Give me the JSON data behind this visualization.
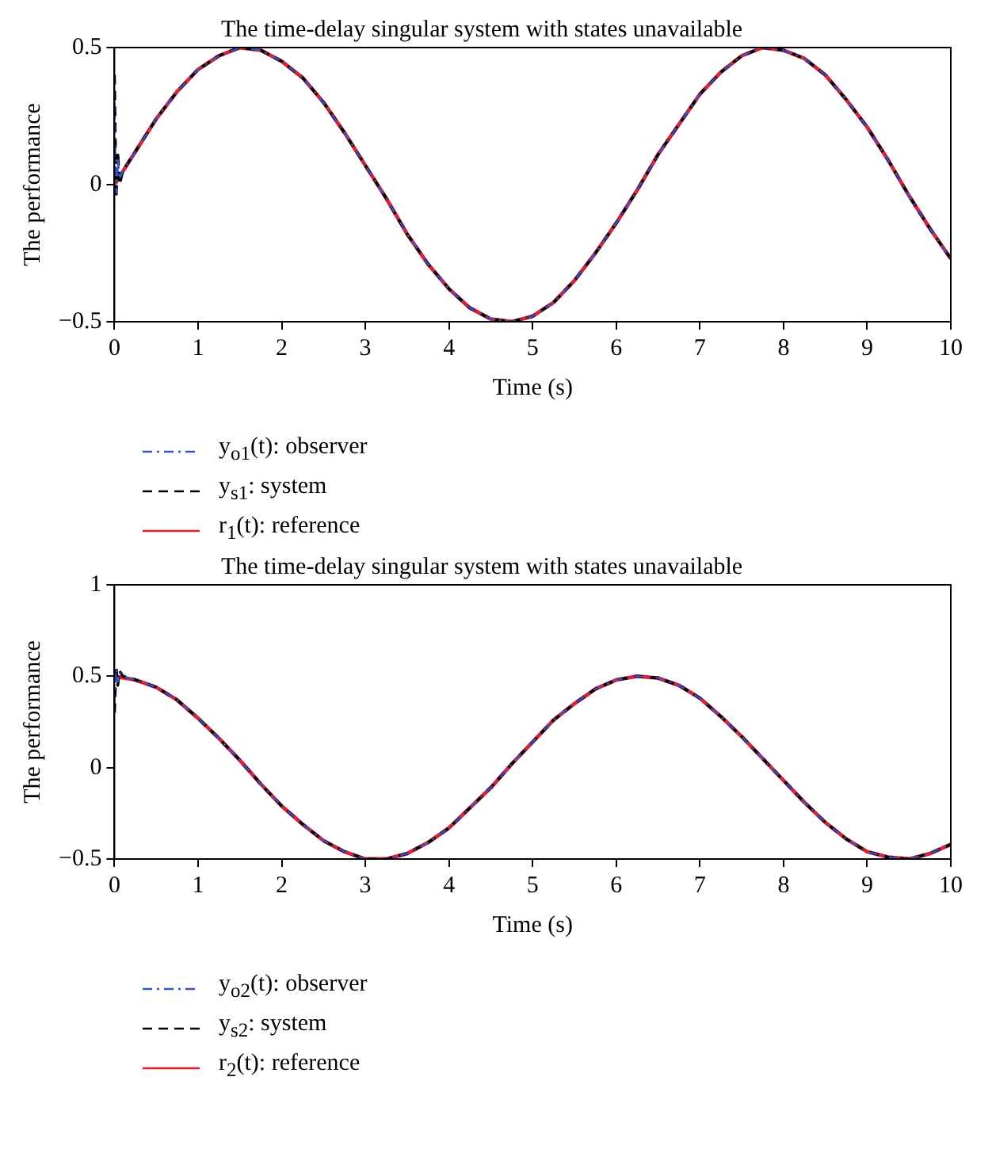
{
  "chart_data": [
    {
      "type": "line",
      "title": "The time-delay singular system with states unavailable",
      "xlabel": "Time (s)",
      "ylabel": "The performance",
      "xlim": [
        0,
        10
      ],
      "xticks": [
        0,
        1,
        2,
        3,
        4,
        5,
        6,
        7,
        8,
        9,
        10
      ],
      "ylim": [
        -0.5,
        0.5
      ],
      "yticks": [
        -0.5,
        0,
        0.5
      ],
      "grid": false,
      "legend": "bottom",
      "marker": "none",
      "x": [
        0,
        0.25,
        0.5,
        0.75,
        1,
        1.25,
        1.5,
        1.75,
        2,
        2.25,
        2.5,
        2.75,
        3,
        3.25,
        3.5,
        3.75,
        4,
        4.25,
        4.5,
        4.75,
        5,
        5.25,
        5.5,
        5.75,
        6,
        6.25,
        6.5,
        6.75,
        7,
        7.25,
        7.5,
        7.75,
        8,
        8.25,
        8.5,
        8.75,
        9,
        9.25,
        9.5,
        9.75,
        10
      ],
      "series": [
        {
          "name": "y$_{o1}$(t): observer",
          "color": "#3355cc",
          "line_style": "dashdot",
          "x": [
            0,
            0.02,
            0.04,
            0.06,
            0.1,
            0.25,
            0.5,
            0.75,
            1,
            1.25,
            1.5,
            1.75,
            2,
            2.25,
            2.5,
            2.75,
            3,
            3.25,
            3.5,
            3.75,
            4,
            4.25,
            4.5,
            4.75,
            5,
            5.25,
            5.5,
            5.75,
            6,
            6.25,
            6.5,
            6.75,
            7,
            7.25,
            7.5,
            7.75,
            8,
            8.25,
            8.5,
            8.75,
            9,
            9.25,
            9.5,
            9.75,
            10
          ],
          "values": [
            0.3,
            -0.03,
            0.1,
            0.02,
            0.05,
            0.12,
            0.24,
            0.34,
            0.42,
            0.47,
            0.5,
            0.49,
            0.45,
            0.39,
            0.3,
            0.19,
            0.07,
            -0.05,
            -0.18,
            -0.29,
            -0.38,
            -0.45,
            -0.49,
            -0.5,
            -0.48,
            -0.43,
            -0.35,
            -0.25,
            -0.14,
            -0.02,
            0.11,
            0.22,
            0.33,
            0.41,
            0.47,
            0.5,
            0.49,
            0.46,
            0.4,
            0.31,
            0.21,
            0.09,
            -0.04,
            -0.16,
            -0.27
          ]
        },
        {
          "name": "y$_{s1}$: system",
          "color": "#000000",
          "line_style": "dashed",
          "x": [
            0,
            0.02,
            0.04,
            0.06,
            0.1,
            0.25,
            0.5,
            0.75,
            1,
            1.25,
            1.5,
            1.75,
            2,
            2.25,
            2.5,
            2.75,
            3,
            3.25,
            3.5,
            3.75,
            4,
            4.25,
            4.5,
            4.75,
            5,
            5.25,
            5.5,
            5.75,
            6,
            6.25,
            6.5,
            6.75,
            7,
            7.25,
            7.5,
            7.75,
            8,
            8.25,
            8.5,
            8.75,
            9,
            9.25,
            9.5,
            9.75,
            10
          ],
          "values": [
            0.4,
            -0.05,
            0.12,
            0.0,
            0.05,
            0.12,
            0.24,
            0.34,
            0.42,
            0.47,
            0.5,
            0.49,
            0.45,
            0.39,
            0.3,
            0.19,
            0.07,
            -0.05,
            -0.18,
            -0.29,
            -0.38,
            -0.45,
            -0.49,
            -0.5,
            -0.48,
            -0.43,
            -0.35,
            -0.25,
            -0.14,
            -0.02,
            0.11,
            0.22,
            0.33,
            0.41,
            0.47,
            0.5,
            0.49,
            0.46,
            0.4,
            0.31,
            0.21,
            0.09,
            -0.04,
            -0.16,
            -0.27
          ]
        },
        {
          "name": "r$_{1}$(t): reference",
          "color": "#ee1c24",
          "line_style": "solid",
          "values": [
            0,
            0.12,
            0.24,
            0.34,
            0.42,
            0.47,
            0.5,
            0.49,
            0.45,
            0.39,
            0.3,
            0.19,
            0.07,
            -0.05,
            -0.18,
            -0.29,
            -0.38,
            -0.45,
            -0.49,
            -0.5,
            -0.48,
            -0.43,
            -0.35,
            -0.25,
            -0.14,
            -0.02,
            0.11,
            0.22,
            0.33,
            0.41,
            0.47,
            0.5,
            0.49,
            0.46,
            0.4,
            0.31,
            0.21,
            0.09,
            -0.04,
            -0.16,
            -0.27
          ]
        }
      ]
    },
    {
      "type": "line",
      "title": "The time-delay singular system with states unavailable",
      "xlabel": "Time (s)",
      "ylabel": "The performance",
      "xlim": [
        0,
        10
      ],
      "xticks": [
        0,
        1,
        2,
        3,
        4,
        5,
        6,
        7,
        8,
        9,
        10
      ],
      "ylim": [
        -0.5,
        1
      ],
      "yticks": [
        -0.5,
        0,
        0.5,
        1
      ],
      "grid": false,
      "legend": "bottom",
      "marker": "none",
      "x": [
        0,
        0.25,
        0.5,
        0.75,
        1,
        1.25,
        1.5,
        1.75,
        2,
        2.25,
        2.5,
        2.75,
        3,
        3.25,
        3.5,
        3.75,
        4,
        4.25,
        4.5,
        4.75,
        5,
        5.25,
        5.5,
        5.75,
        6,
        6.25,
        6.5,
        6.75,
        7,
        7.25,
        7.5,
        7.75,
        8,
        8.25,
        8.5,
        8.75,
        9,
        9.25,
        9.5,
        9.75,
        10
      ],
      "series": [
        {
          "name": "y$_{o2}$(t): observer",
          "color": "#3355cc",
          "line_style": "dashdot",
          "x": [
            0,
            0.02,
            0.04,
            0.06,
            0.1,
            0.25,
            0.5,
            0.75,
            1,
            1.25,
            1.5,
            1.75,
            2,
            2.25,
            2.5,
            2.75,
            3,
            3.25,
            3.5,
            3.75,
            4,
            4.25,
            4.5,
            4.75,
            5,
            5.25,
            5.5,
            5.75,
            6,
            6.25,
            6.5,
            6.75,
            7,
            7.25,
            7.5,
            7.75,
            8,
            8.25,
            8.5,
            8.75,
            9,
            9.25,
            9.5,
            9.75,
            10
          ],
          "values": [
            0.35,
            0.54,
            0.47,
            0.52,
            0.5,
            0.48,
            0.44,
            0.37,
            0.27,
            0.16,
            0.04,
            -0.09,
            -0.21,
            -0.31,
            -0.4,
            -0.46,
            -0.5,
            -0.5,
            -0.47,
            -0.41,
            -0.33,
            -0.22,
            -0.11,
            0.02,
            0.14,
            0.26,
            0.35,
            0.43,
            0.48,
            0.5,
            0.49,
            0.45,
            0.38,
            0.28,
            0.17,
            0.05,
            -0.07,
            -0.19,
            -0.3,
            -0.39,
            -0.46,
            -0.49,
            -0.5,
            -0.47,
            -0.42
          ]
        },
        {
          "name": "y$_{s2}$: system",
          "color": "#000000",
          "line_style": "dashed",
          "x": [
            0,
            0.02,
            0.04,
            0.06,
            0.1,
            0.25,
            0.5,
            0.75,
            1,
            1.25,
            1.5,
            1.75,
            2,
            2.25,
            2.5,
            2.75,
            3,
            3.25,
            3.5,
            3.75,
            4,
            4.25,
            4.5,
            4.75,
            5,
            5.25,
            5.5,
            5.75,
            6,
            6.25,
            6.5,
            6.75,
            7,
            7.25,
            7.5,
            7.75,
            8,
            8.25,
            8.5,
            8.75,
            9,
            9.25,
            9.5,
            9.75,
            10
          ],
          "values": [
            0.3,
            0.55,
            0.45,
            0.53,
            0.5,
            0.48,
            0.44,
            0.37,
            0.27,
            0.16,
            0.04,
            -0.09,
            -0.21,
            -0.31,
            -0.4,
            -0.46,
            -0.5,
            -0.5,
            -0.47,
            -0.41,
            -0.33,
            -0.22,
            -0.11,
            0.02,
            0.14,
            0.26,
            0.35,
            0.43,
            0.48,
            0.5,
            0.49,
            0.45,
            0.38,
            0.28,
            0.17,
            0.05,
            -0.07,
            -0.19,
            -0.3,
            -0.39,
            -0.46,
            -0.49,
            -0.5,
            -0.47,
            -0.42
          ]
        },
        {
          "name": "r$_{2}$(t): reference",
          "color": "#ee1c24",
          "line_style": "solid",
          "values": [
            0.5,
            0.48,
            0.44,
            0.37,
            0.27,
            0.16,
            0.04,
            -0.09,
            -0.21,
            -0.31,
            -0.4,
            -0.46,
            -0.5,
            -0.5,
            -0.47,
            -0.41,
            -0.33,
            -0.22,
            -0.11,
            0.02,
            0.14,
            0.26,
            0.35,
            0.43,
            0.48,
            0.5,
            0.49,
            0.45,
            0.38,
            0.28,
            0.17,
            0.05,
            -0.07,
            -0.19,
            -0.3,
            -0.39,
            -0.46,
            -0.49,
            -0.5,
            -0.47,
            -0.42
          ]
        }
      ]
    }
  ]
}
